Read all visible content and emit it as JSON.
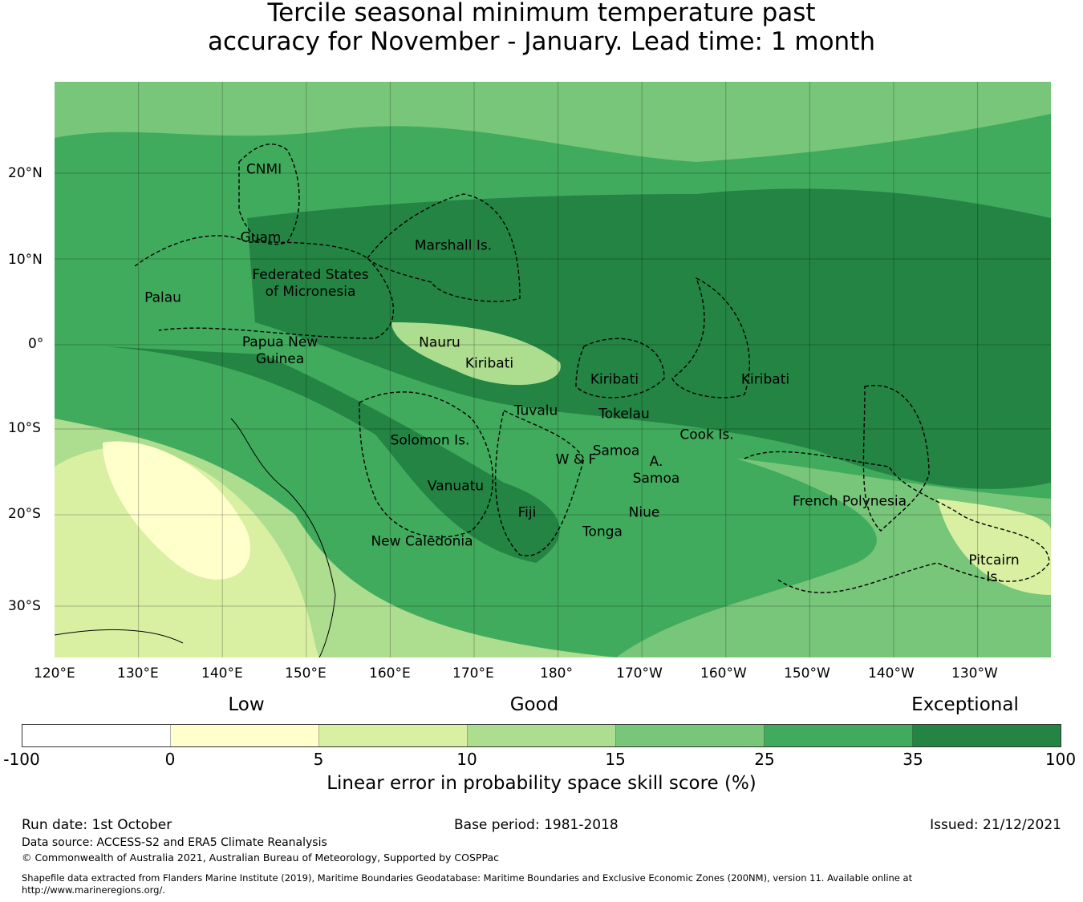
{
  "title": [
    "Tercile seasonal minimum temperature past",
    "accuracy for November - January. Lead time: 1 month"
  ],
  "map": {
    "lon_ticks": [
      "120°E",
      "130°E",
      "140°E",
      "150°E",
      "160°E",
      "170°E",
      "180°",
      "170°W",
      "160°W",
      "150°W",
      "140°W",
      "130°W"
    ],
    "lat_ticks": [
      "20°N",
      "10°N",
      "0°",
      "10°S",
      "20°S",
      "30°S"
    ],
    "regions": [
      "CNMI",
      "Guam",
      "Marshall Is.",
      "Federated States\nof Micronesia",
      "Palau",
      "Nauru",
      "Papua New\nGuinea",
      "Kiribati",
      "Kiribati",
      "Kiribati",
      "Tuvalu",
      "Tokelau",
      "Cook Is.",
      "Solomon Is.",
      "Samoa",
      "W & F",
      "A.\nSamoa",
      "Vanuatu",
      "Fiji",
      "Niue",
      "Tonga",
      "New Caledonia",
      "French Polynesia",
      "Pitcairn\nIs."
    ]
  },
  "legend": {
    "categories": [
      "Low",
      "Good",
      "Exceptional"
    ],
    "bounds": [
      "-100",
      "0",
      "5",
      "10",
      "15",
      "25",
      "35",
      "100"
    ],
    "colors": [
      "#ffffff",
      "#ffffcc",
      "#d9f0a3",
      "#addd8e",
      "#78c679",
      "#41ab5d",
      "#238443"
    ],
    "label": "Linear error in probability space skill score (%)"
  },
  "footer": {
    "run_date": "Run date: 1st October",
    "base_period": "Base period: 1981-2018",
    "issued": "Issued: 21/12/2021",
    "source": "Data source: ACCESS-S2 and ERA5 Climate Reanalysis",
    "copyright": "© Commonwealth of Australia 2021, Australian Bureau of Meteorology, Supported by COSPPac",
    "shapefile": "Shapefile data extracted from Flanders Marine Institute (2019), Maritime Boundaries Geodatabase: Maritime Boundaries and Exclusive Economic Zones (200NM), version 11. Available online at",
    "url": "http://www.marineregions.org/."
  }
}
